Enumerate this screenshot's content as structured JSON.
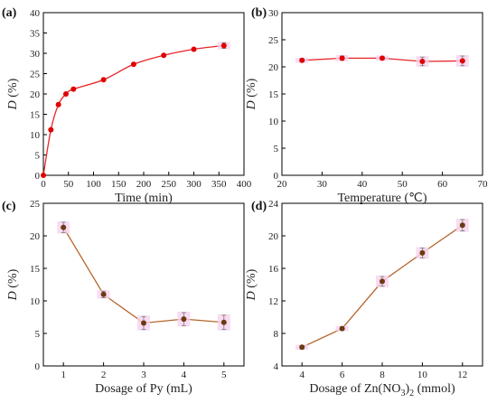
{
  "chart_data": [
    {
      "panel": "(a)",
      "type": "line",
      "xlabel": "Time (min)",
      "ylabel_italic": "D",
      "ylabel_rest": " (%)",
      "xlim": [
        0,
        400
      ],
      "ylim": [
        0,
        40
      ],
      "xticks": [
        0,
        50,
        100,
        150,
        200,
        250,
        300,
        350,
        400
      ],
      "yticks": [
        0,
        5,
        10,
        15,
        20,
        25,
        30,
        35,
        40
      ],
      "line_color": "#e8262b",
      "marker_color": "#e00000",
      "smooth": true,
      "x": [
        0,
        15,
        30,
        45,
        60,
        120,
        180,
        240,
        300,
        360
      ],
      "y": [
        0,
        11.2,
        17.4,
        20.0,
        21.2,
        23.5,
        27.3,
        29.5,
        31.0,
        31.9
      ],
      "err": [
        0,
        0,
        0,
        0,
        0,
        0,
        0,
        0,
        0,
        0.7
      ]
    },
    {
      "panel": "(b)",
      "type": "line",
      "xlabel": "Temperature (℃)",
      "ylabel_italic": "D",
      "ylabel_rest": " (%)",
      "xlim": [
        20,
        70
      ],
      "ylim": [
        0,
        30
      ],
      "xticks": [
        20,
        30,
        40,
        50,
        60,
        70
      ],
      "yticks": [
        0,
        5,
        10,
        15,
        20,
        25,
        30
      ],
      "line_color": "#e8262b",
      "marker_color": "#e00000",
      "smooth": false,
      "x": [
        25,
        35,
        45,
        55,
        65
      ],
      "y": [
        21.2,
        21.6,
        21.6,
        21.0,
        21.1
      ],
      "err": [
        0.3,
        0.4,
        0.3,
        0.8,
        0.9
      ]
    },
    {
      "panel": "(c)",
      "type": "line",
      "xlabel": "Dosage of Py (mL)",
      "ylabel_italic": "D",
      "ylabel_rest": " (%)",
      "xlim": [
        0.5,
        5.5
      ],
      "ylim": [
        0,
        25
      ],
      "xticks": [
        1,
        2,
        3,
        4,
        5
      ],
      "yticks": [
        0,
        5,
        10,
        15,
        20,
        25
      ],
      "line_color": "#b5652a",
      "marker_color": "#6b3a12",
      "smooth": false,
      "x": [
        1,
        2,
        3,
        4,
        5
      ],
      "y": [
        21.3,
        11.0,
        6.6,
        7.2,
        6.7
      ],
      "err": [
        0.8,
        0.5,
        1.0,
        1.0,
        1.1
      ]
    },
    {
      "panel": "(d)",
      "type": "line",
      "xlabel_main": "Dosage of Zn(NO",
      "xlabel_sub": "3",
      "xlabel_after": ")",
      "xlabel_sub2": "2",
      "xlabel_end": " (mmol)",
      "ylabel_italic": "D",
      "ylabel_rest": " (%)",
      "xlim": [
        3,
        13
      ],
      "ylim": [
        4,
        24
      ],
      "xticks": [
        4,
        6,
        8,
        10,
        12
      ],
      "yticks": [
        4,
        8,
        12,
        16,
        20,
        24
      ],
      "line_color": "#b5652a",
      "marker_color": "#6b3a12",
      "smooth": false,
      "x": [
        4,
        6,
        8,
        10,
        12
      ],
      "y": [
        6.3,
        8.6,
        14.4,
        17.9,
        21.3
      ],
      "err": [
        0.2,
        0.2,
        0.6,
        0.6,
        0.7
      ]
    }
  ]
}
